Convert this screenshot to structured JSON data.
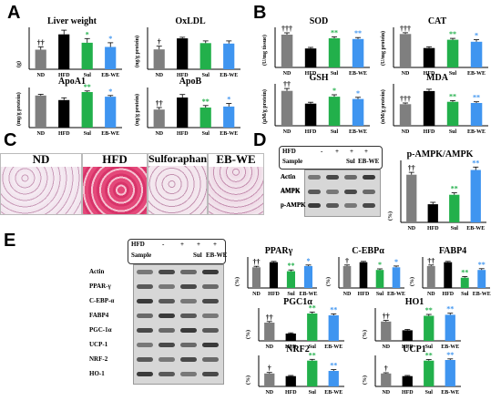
{
  "panel_letters": [
    "A",
    "B",
    "C",
    "D",
    "E"
  ],
  "groups": [
    "ND",
    "HFD",
    "Sul",
    "EB-WE"
  ],
  "colors": {
    "ND": "#7f7f7f",
    "HFD": "#000000",
    "Sul": "#22b04b",
    "EB-WE": "#3f95f0"
  },
  "histology_labels": [
    "ND",
    "HFD",
    "Sulforaphane",
    "EB-WE"
  ],
  "western_D": {
    "header": [
      "HFD",
      "Sample"
    ],
    "header_marks": {
      "HFD": [
        "-",
        "+",
        "+",
        "+"
      ],
      "Sample": [
        "",
        "",
        "Sul",
        "EB-WE"
      ]
    },
    "bands": [
      "Actin",
      "AMPK",
      "p-AMPK"
    ]
  },
  "western_E": {
    "header": [
      "HFD",
      "Sample"
    ],
    "header_marks": {
      "HFD": [
        "-",
        "+",
        "+",
        "+"
      ],
      "Sample": [
        "",
        "",
        "Sul",
        "EB-WE"
      ]
    },
    "bands": [
      "Actin",
      "PPAR-γ",
      "C-EBP-α",
      "FABP4",
      "PGC-1α",
      "UCP-1",
      "NRF-2",
      "HO-1"
    ]
  },
  "chart_data": [
    {
      "id": "liver",
      "type": "bar",
      "title": "Liver weight",
      "ylabel": "(g)",
      "categories": [
        "ND",
        "HFD",
        "Sul",
        "EB-WE"
      ],
      "values": [
        1.4,
        2.5,
        1.9,
        1.6
      ],
      "errors": [
        0.2,
        0.3,
        0.3,
        0.3
      ],
      "ylim": [
        0,
        3
      ],
      "sig": [
        "††",
        "",
        "*",
        "*"
      ]
    },
    {
      "id": "oxldl",
      "type": "bar",
      "title": "OxLDL",
      "ylabel": "(ng/g protein)",
      "categories": [
        "ND",
        "HFD",
        "Sul",
        "EB-WE"
      ],
      "values": [
        3.8,
        5.9,
        5.0,
        4.9
      ],
      "errors": [
        0.6,
        0.2,
        0.4,
        0.5
      ],
      "ylim": [
        0,
        8
      ],
      "sig": [
        "†",
        "",
        "",
        ""
      ]
    },
    {
      "id": "apoa1",
      "type": "bar",
      "title": "ApoA1",
      "ylabel": "(mg/g protein)",
      "categories": [
        "ND",
        "HFD",
        "Sul",
        "EB-WE"
      ],
      "values": [
        28,
        24,
        31,
        27
      ],
      "errors": [
        1,
        2,
        1,
        1
      ],
      "ylim": [
        0,
        35
      ],
      "sig": [
        "",
        "",
        "**",
        "*"
      ]
    },
    {
      "id": "apob",
      "type": "bar",
      "title": "ApoB",
      "ylabel": "(ng/g protein)",
      "categories": [
        "ND",
        "HFD",
        "Sul",
        "EB-WE"
      ],
      "values": [
        18,
        30,
        20,
        21
      ],
      "errors": [
        2,
        3,
        2,
        3
      ],
      "ylim": [
        0,
        40
      ],
      "sig": [
        "††",
        "",
        "**",
        "*"
      ]
    },
    {
      "id": "sod",
      "type": "bar",
      "title": "SOD",
      "ylabel": "(U/mg tissue)",
      "categories": [
        "ND",
        "HFD",
        "Sul",
        "EB-WE"
      ],
      "values": [
        90,
        52,
        80,
        78
      ],
      "errors": [
        5,
        3,
        4,
        4
      ],
      "ylim": [
        0,
        110
      ],
      "sig": [
        "†††",
        "",
        "**",
        "**"
      ]
    },
    {
      "id": "cat",
      "type": "bar",
      "title": "CAT",
      "ylabel": "(U/mg protein)",
      "categories": [
        "ND",
        "HFD",
        "Sul",
        "EB-WE"
      ],
      "values": [
        100,
        58,
        83,
        77
      ],
      "errors": [
        4,
        4,
        4,
        6
      ],
      "ylim": [
        0,
        120
      ],
      "sig": [
        "†††",
        "",
        "**",
        "*"
      ]
    },
    {
      "id": "gsh",
      "type": "bar",
      "title": "GSH",
      "ylabel": "(µM/g protein)",
      "categories": [
        "ND",
        "HFD",
        "Sul",
        "EB-WE"
      ],
      "values": [
        1.5,
        0.95,
        1.25,
        1.15
      ],
      "errors": [
        0.1,
        0.06,
        0.08,
        0.07
      ],
      "ylim": [
        0,
        1.8
      ],
      "sig": [
        "††",
        "",
        "*",
        "*"
      ]
    },
    {
      "id": "mda",
      "type": "bar",
      "title": "MDA",
      "ylabel": "(nM/g protein)",
      "categories": [
        "ND",
        "HFD",
        "Sul",
        "EB-WE"
      ],
      "values": [
        1.8,
        2.9,
        2.0,
        1.9
      ],
      "errors": [
        0.1,
        0.15,
        0.1,
        0.1
      ],
      "ylim": [
        0,
        3.5
      ],
      "sig": [
        "†††",
        "",
        "**",
        "**"
      ]
    },
    {
      "id": "pampk",
      "type": "bar",
      "title": "p-AMPK/AMPK",
      "ylabel": "(%)",
      "categories": [
        "ND",
        "HFD",
        "Sul",
        "EB-WE"
      ],
      "values": [
        100,
        38,
        58,
        110
      ],
      "errors": [
        5,
        4,
        4,
        6
      ],
      "ylim": [
        0,
        130
      ],
      "sig": [
        "††",
        "",
        "**",
        "**"
      ]
    },
    {
      "id": "ppar",
      "type": "bar",
      "title": "PPARγ",
      "ylabel": "(%)",
      "categories": [
        "ND",
        "HFD",
        "Sul",
        "EB-WE"
      ],
      "values": [
        80,
        100,
        65,
        85
      ],
      "errors": [
        4,
        3,
        5,
        4
      ],
      "ylim": [
        0,
        120
      ],
      "sig": [
        "††",
        "",
        "**",
        "*"
      ]
    },
    {
      "id": "cebp",
      "type": "bar",
      "title": "C-EBPα",
      "ylabel": "(%)",
      "categories": [
        "ND",
        "HFD",
        "Sul",
        "EB-WE"
      ],
      "values": [
        85,
        100,
        70,
        80
      ],
      "errors": [
        4,
        3,
        4,
        5
      ],
      "ylim": [
        0,
        120
      ],
      "sig": [
        "†",
        "",
        "*",
        "*"
      ]
    },
    {
      "id": "fabp4",
      "type": "bar",
      "title": "FABP4",
      "ylabel": "(%)",
      "categories": [
        "ND",
        "HFD",
        "Sul",
        "EB-WE"
      ],
      "values": [
        85,
        100,
        40,
        70
      ],
      "errors": [
        4,
        3,
        4,
        5
      ],
      "ylim": [
        0,
        120
      ],
      "sig": [
        "††",
        "",
        "**",
        "**"
      ]
    },
    {
      "id": "pgc1a",
      "type": "bar",
      "title": "PGC1α",
      "ylabel": "(%)",
      "categories": [
        "ND",
        "HFD",
        "Sul",
        "EB-WE"
      ],
      "values": [
        100,
        40,
        150,
        140
      ],
      "errors": [
        6,
        4,
        8,
        8
      ],
      "ylim": [
        0,
        180
      ],
      "sig": [
        "††",
        "",
        "**",
        "**"
      ]
    },
    {
      "id": "ho1",
      "type": "bar",
      "title": "HO1",
      "ylabel": "(%)",
      "categories": [
        "ND",
        "HFD",
        "Sul",
        "EB-WE"
      ],
      "values": [
        100,
        55,
        130,
        135
      ],
      "errors": [
        6,
        4,
        7,
        8
      ],
      "ylim": [
        0,
        170
      ],
      "sig": [
        "††",
        "",
        "**",
        "**"
      ]
    },
    {
      "id": "nrf2",
      "type": "bar",
      "title": "NRF2",
      "ylabel": "(%)",
      "categories": [
        "ND",
        "HFD",
        "Sul",
        "EB-WE"
      ],
      "values": [
        100,
        80,
        200,
        120
      ],
      "errors": [
        8,
        5,
        10,
        10
      ],
      "ylim": [
        0,
        240
      ],
      "sig": [
        "†",
        "",
        "**",
        "**"
      ]
    },
    {
      "id": "ucp1",
      "type": "bar",
      "title": "UCP1",
      "ylabel": "(%)",
      "categories": [
        "ND",
        "HFD",
        "Sul",
        "EB-WE"
      ],
      "values": [
        100,
        80,
        200,
        205
      ],
      "errors": [
        6,
        5,
        8,
        8
      ],
      "ylim": [
        0,
        240
      ],
      "sig": [
        "†",
        "",
        "**",
        "**"
      ]
    }
  ]
}
